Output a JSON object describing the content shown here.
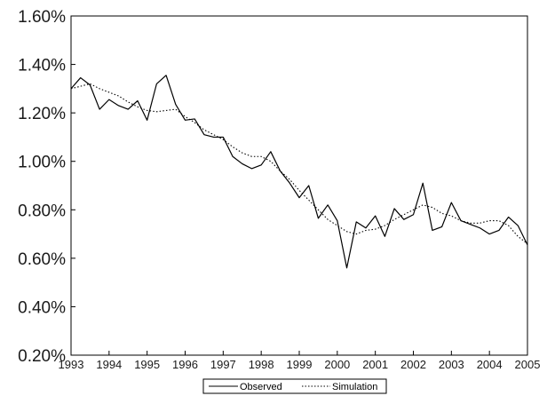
{
  "chart_data": {
    "type": "line",
    "title": "",
    "xlabel": "",
    "ylabel": "",
    "xlim": [
      1993,
      2005
    ],
    "ylim": [
      0.2,
      1.6
    ],
    "grid": false,
    "legend_position": "bottom-center",
    "x_ticks": [
      "1993",
      "1994",
      "1995",
      "1996",
      "1997",
      "1998",
      "1999",
      "2000",
      "2001",
      "2002",
      "2003",
      "2004",
      "2005"
    ],
    "y_ticks": [
      "0.20%",
      "0.40%",
      "0.60%",
      "0.80%",
      "1.00%",
      "1.20%",
      "1.40%",
      "1.60%"
    ],
    "series": [
      {
        "name": "Observed",
        "style": "solid",
        "color": "#000000",
        "x": [
          1993.0,
          1993.25,
          1993.5,
          1993.75,
          1994.0,
          1994.25,
          1994.5,
          1994.75,
          1995.0,
          1995.25,
          1995.5,
          1995.75,
          1996.0,
          1996.25,
          1996.5,
          1996.75,
          1997.0,
          1997.25,
          1997.5,
          1997.75,
          1998.0,
          1998.25,
          1998.5,
          1998.75,
          1999.0,
          1999.25,
          1999.5,
          1999.75,
          2000.0,
          2000.25,
          2000.5,
          2000.75,
          2001.0,
          2001.25,
          2001.5,
          2001.75,
          2002.0,
          2002.25,
          2002.5,
          2002.75,
          2003.0,
          2003.25,
          2003.5,
          2003.75,
          2004.0,
          2004.25,
          2004.5,
          2004.75,
          2005.0
        ],
        "values": [
          1.3,
          1.345,
          1.315,
          1.215,
          1.255,
          1.23,
          1.215,
          1.25,
          1.17,
          1.32,
          1.355,
          1.235,
          1.17,
          1.175,
          1.11,
          1.1,
          1.1,
          1.02,
          0.99,
          0.97,
          0.985,
          1.04,
          0.96,
          0.91,
          0.85,
          0.9,
          0.765,
          0.82,
          0.755,
          0.56,
          0.75,
          0.725,
          0.775,
          0.69,
          0.805,
          0.76,
          0.78,
          0.91,
          0.715,
          0.73,
          0.83,
          0.755,
          0.74,
          0.725,
          0.7,
          0.715,
          0.77,
          0.735,
          0.655
        ]
      },
      {
        "name": "Simulation",
        "style": "dotted",
        "color": "#000000",
        "x": [
          1993.0,
          1993.25,
          1993.5,
          1993.75,
          1994.0,
          1994.25,
          1994.5,
          1994.75,
          1995.0,
          1995.25,
          1995.5,
          1995.75,
          1996.0,
          1996.25,
          1996.5,
          1996.75,
          1997.0,
          1997.25,
          1997.5,
          1997.75,
          1998.0,
          1998.25,
          1998.5,
          1998.75,
          1999.0,
          1999.25,
          1999.5,
          1999.75,
          2000.0,
          2000.25,
          2000.5,
          2000.75,
          2001.0,
          2001.25,
          2001.5,
          2001.75,
          2002.0,
          2002.25,
          2002.5,
          2002.75,
          2003.0,
          2003.25,
          2003.5,
          2003.75,
          2004.0,
          2004.25,
          2004.5,
          2004.75,
          2005.0
        ],
        "values": [
          1.3,
          1.31,
          1.32,
          1.3,
          1.285,
          1.27,
          1.245,
          1.225,
          1.21,
          1.205,
          1.21,
          1.215,
          1.185,
          1.16,
          1.13,
          1.11,
          1.09,
          1.06,
          1.035,
          1.02,
          1.02,
          1.0,
          0.96,
          0.925,
          0.88,
          0.84,
          0.8,
          0.76,
          0.735,
          0.71,
          0.7,
          0.715,
          0.72,
          0.735,
          0.76,
          0.78,
          0.8,
          0.82,
          0.81,
          0.785,
          0.775,
          0.755,
          0.745,
          0.745,
          0.755,
          0.755,
          0.735,
          0.69,
          0.66
        ]
      }
    ]
  }
}
